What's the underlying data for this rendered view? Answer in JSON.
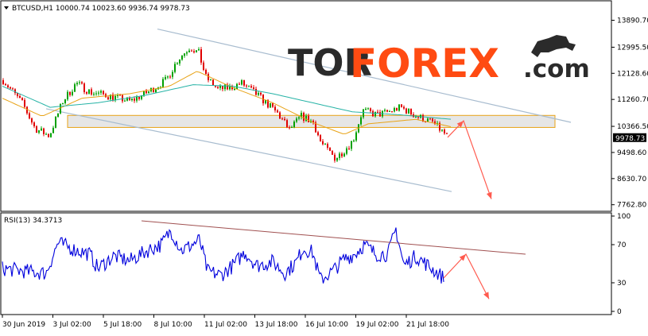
{
  "header": {
    "symbol_line": "BTCUSD,H1  10000.74 10023.60 9936.74 9978.73",
    "rsi_line": "RSI(13) 34.3713"
  },
  "brand": {
    "tor": "TOR",
    "forex": "FOREX",
    "suffix": ".com",
    "tor_color": "#2b2b2b",
    "forex_color": "#ff4b12"
  },
  "colors": {
    "bull": "#00a000",
    "bear": "#e00000",
    "ma_fast": "#e8a317",
    "ma_slow": "#26b3a6",
    "rsi": "#0000dd",
    "channel": "#a8bccf",
    "zone_fill": "#e6e6e6",
    "zone_border": "#e8a317",
    "arrow": "#ff5a4e",
    "rsi_trend": "#a05050"
  },
  "chart_data": [
    {
      "type": "candlestick",
      "symbol": "BTCUSD",
      "timeframe": "H1",
      "last_price": "9978.73",
      "ylim": [
        7650,
        14300
      ],
      "y_ticks": [
        "13890.70",
        "12995.50",
        "12128.60",
        "11260.70",
        "10366.50",
        "9498.60",
        "8630.70",
        "7762.80"
      ],
      "x_ticks": [
        "30 Jun 2019",
        "3 Jul 02:00",
        "5 Jul 18:00",
        "8 Jul 10:00",
        "11 Jul 02:00",
        "13 Jul 18:00",
        "16 Jul 10:00",
        "19 Jul 02:00",
        "21 Jul 18:00"
      ],
      "price_path": [
        [
          0,
          11900
        ],
        [
          25,
          11100
        ],
        [
          40,
          10300
        ],
        [
          58,
          10050
        ],
        [
          75,
          11200
        ],
        [
          92,
          11800
        ],
        [
          110,
          11500
        ],
        [
          130,
          11400
        ],
        [
          160,
          11200
        ],
        [
          185,
          11550
        ],
        [
          205,
          11900
        ],
        [
          220,
          12600
        ],
        [
          235,
          13000
        ],
        [
          246,
          12800
        ],
        [
          255,
          12000
        ],
        [
          270,
          11600
        ],
        [
          285,
          11650
        ],
        [
          300,
          11800
        ],
        [
          320,
          11400
        ],
        [
          345,
          10800
        ],
        [
          360,
          10250
        ],
        [
          375,
          10700
        ],
        [
          390,
          10500
        ],
        [
          400,
          9800
        ],
        [
          418,
          9300
        ],
        [
          430,
          9600
        ],
        [
          440,
          9900
        ],
        [
          452,
          10900
        ],
        [
          470,
          10750
        ],
        [
          485,
          10850
        ],
        [
          500,
          11000
        ],
        [
          520,
          10700
        ],
        [
          540,
          10500
        ],
        [
          560,
          10000
        ]
      ],
      "moving_averages": [
        {
          "color_key": "ma_fast",
          "path": [
            [
              0,
              11300
            ],
            [
              50,
              10700
            ],
            [
              100,
              11300
            ],
            [
              160,
              11450
            ],
            [
              210,
              11700
            ],
            [
              245,
              12200
            ],
            [
              290,
              11650
            ],
            [
              340,
              11150
            ],
            [
              390,
              10500
            ],
            [
              430,
              10100
            ],
            [
              460,
              10450
            ],
            [
              520,
              10600
            ],
            [
              565,
              10350
            ]
          ]
        },
        {
          "color_key": "ma_slow",
          "path": [
            [
              0,
              11700
            ],
            [
              60,
              11000
            ],
            [
              120,
              11150
            ],
            [
              180,
              11400
            ],
            [
              240,
              11750
            ],
            [
              290,
              11700
            ],
            [
              340,
              11450
            ],
            [
              390,
              11150
            ],
            [
              440,
              10850
            ],
            [
              500,
              10750
            ],
            [
              565,
              10600
            ]
          ]
        }
      ],
      "resistance_zone": [
        10330,
        10730
      ],
      "channel_upper": [
        [
          195,
          13600
        ],
        [
          715,
          10500
        ]
      ],
      "channel_lower": [
        [
          55,
          10950
        ],
        [
          565,
          8200
        ]
      ],
      "forecast_arrows": [
        [
          [
            560,
            10000
          ],
          [
            580,
            10550
          ],
          [
            615,
            7950
          ]
        ]
      ]
    },
    {
      "type": "line",
      "indicator": "RSI(13)",
      "value": "34.3713",
      "ylim": [
        0,
        100
      ],
      "y_ticks": [
        "100",
        "70",
        "30",
        "0"
      ],
      "rsi_path": [
        [
          0,
          45
        ],
        [
          30,
          42
        ],
        [
          55,
          40
        ],
        [
          70,
          72
        ],
        [
          90,
          65
        ],
        [
          110,
          60
        ],
        [
          120,
          45
        ],
        [
          140,
          58
        ],
        [
          160,
          53
        ],
        [
          185,
          65
        ],
        [
          200,
          70
        ],
        [
          212,
          85
        ],
        [
          225,
          64
        ],
        [
          235,
          68
        ],
        [
          248,
          75
        ],
        [
          258,
          42
        ],
        [
          275,
          38
        ],
        [
          290,
          48
        ],
        [
          305,
          62
        ],
        [
          320,
          48
        ],
        [
          340,
          52
        ],
        [
          355,
          40
        ],
        [
          370,
          52
        ],
        [
          378,
          66
        ],
        [
          390,
          62
        ],
        [
          400,
          33
        ],
        [
          415,
          42
        ],
        [
          430,
          55
        ],
        [
          443,
          60
        ],
        [
          455,
          70
        ],
        [
          470,
          60
        ],
        [
          485,
          60
        ],
        [
          495,
          86
        ],
        [
          505,
          48
        ],
        [
          520,
          58
        ],
        [
          540,
          45
        ],
        [
          555,
          35
        ]
      ],
      "rsi_trendline": [
        [
          175,
          95
        ],
        [
          658,
          60
        ]
      ],
      "forecast_arrows": [
        [
          [
            555,
            35
          ],
          [
            583,
            60
          ],
          [
            612,
            13
          ]
        ]
      ]
    }
  ]
}
